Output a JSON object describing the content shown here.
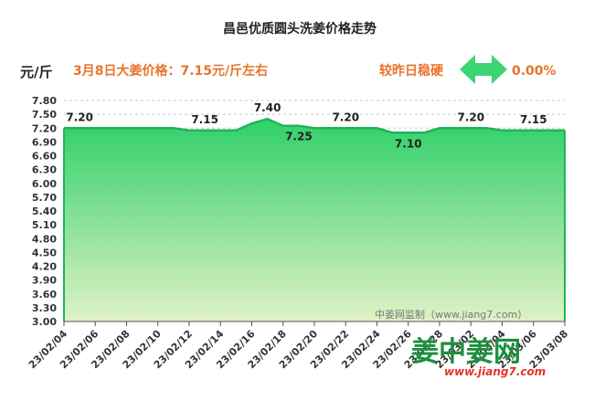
{
  "colors": {
    "line": "#1fb35a",
    "fill_top": "#2fd06a",
    "fill_bottom": "#dff2c6",
    "accent_orange": "#e8732a",
    "arrow": "#3dd474",
    "logo_green": "#1d8f3e",
    "logo_red": "#e8312a"
  },
  "header": {
    "title": "昌邑优质圆头洗姜价格走势",
    "unit": "元/斤",
    "price_note": "3月8日大姜价格：7.15元/斤左右",
    "change_label": "较昨日稳硬",
    "change_icon": "double-arrow-icon",
    "change_value": "0.00%"
  },
  "watermark": {
    "source_text": "中姜网监制（www.jiang7.com）",
    "logo_cn": "姜中姜网",
    "logo_en": "www.jiang7.com"
  },
  "chart_data": {
    "type": "area",
    "title": "昌邑优质圆头洗姜价格走势",
    "ylabel": "元/斤",
    "xlabel": "",
    "ylim": [
      3.0,
      7.8
    ],
    "yticks": [
      "3.00",
      "3.30",
      "3.60",
      "3.90",
      "4.20",
      "4.50",
      "4.80",
      "5.10",
      "5.40",
      "5.70",
      "6.00",
      "6.30",
      "6.60",
      "6.90",
      "7.20",
      "7.50",
      "7.80"
    ],
    "xticks": [
      "23/02/04",
      "23/02/06",
      "23/02/08",
      "23/02/10",
      "23/02/12",
      "23/02/14",
      "23/02/16",
      "23/02/18",
      "23/02/20",
      "23/02/22",
      "23/02/24",
      "23/02/26",
      "23/02/28",
      "23/03/02",
      "23/03/04",
      "23/03/06",
      "23/03/08"
    ],
    "grid": true,
    "x": [
      "23/02/04",
      "23/02/05",
      "23/02/06",
      "23/02/07",
      "23/02/08",
      "23/02/09",
      "23/02/10",
      "23/02/11",
      "23/02/12",
      "23/02/13",
      "23/02/14",
      "23/02/15",
      "23/02/16",
      "23/02/17",
      "23/02/18",
      "23/02/19",
      "23/02/20",
      "23/02/21",
      "23/02/22",
      "23/02/23",
      "23/02/24",
      "23/02/25",
      "23/02/26",
      "23/02/27",
      "23/02/28",
      "23/03/01",
      "23/03/02",
      "23/03/03",
      "23/03/04",
      "23/03/05",
      "23/03/06",
      "23/03/07",
      "23/03/08"
    ],
    "values": [
      7.2,
      7.2,
      7.2,
      7.2,
      7.2,
      7.2,
      7.2,
      7.2,
      7.15,
      7.15,
      7.15,
      7.15,
      7.3,
      7.4,
      7.25,
      7.25,
      7.2,
      7.2,
      7.2,
      7.2,
      7.2,
      7.1,
      7.1,
      7.1,
      7.2,
      7.2,
      7.2,
      7.2,
      7.15,
      7.15,
      7.15,
      7.15,
      7.15
    ],
    "data_labels": [
      {
        "x": "23/02/05",
        "text": "7.20",
        "pos": "above"
      },
      {
        "x": "23/02/13",
        "text": "7.15",
        "pos": "above"
      },
      {
        "x": "23/02/17",
        "text": "7.40",
        "pos": "above"
      },
      {
        "x": "23/02/19",
        "text": "7.25",
        "pos": "below"
      },
      {
        "x": "23/02/22",
        "text": "7.20",
        "pos": "above"
      },
      {
        "x": "23/02/26",
        "text": "7.10",
        "pos": "below"
      },
      {
        "x": "23/03/02",
        "text": "7.20",
        "pos": "above"
      },
      {
        "x": "23/03/06",
        "text": "7.15",
        "pos": "above"
      }
    ]
  }
}
